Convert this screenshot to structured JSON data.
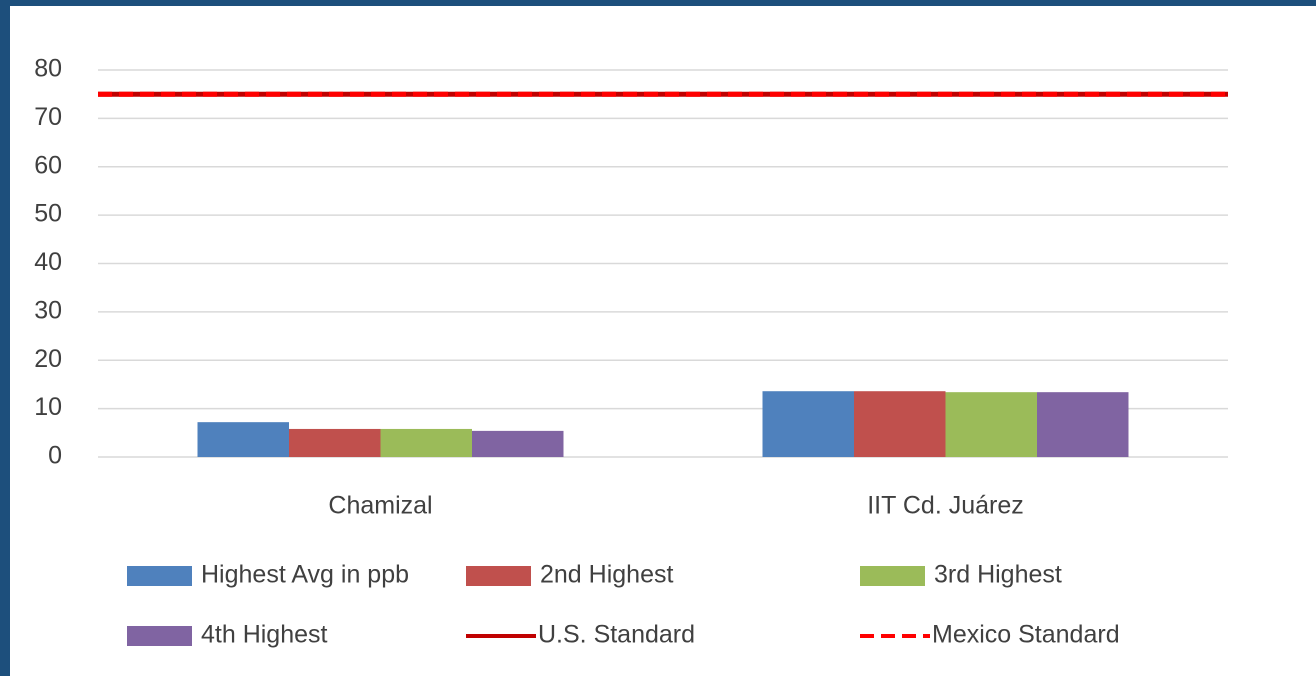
{
  "chart_data": {
    "type": "bar",
    "categories": [
      "Chamizal",
      "IIT Cd. Juárez"
    ],
    "series": [
      {
        "name": "Highest Avg in ppb",
        "color": "#4f81bd",
        "values": [
          7.2,
          13.6
        ]
      },
      {
        "name": "2nd Highest",
        "color": "#c0504d",
        "values": [
          5.8,
          13.6
        ]
      },
      {
        "name": "3rd Highest",
        "color": "#9bbb59",
        "values": [
          5.8,
          13.4
        ]
      },
      {
        "name": "4th Highest",
        "color": "#8064a2",
        "values": [
          5.4,
          13.4
        ]
      },
      {
        "name": "U.S. Standard",
        "color": "#c00000",
        "type": "line",
        "values": [
          75,
          75
        ]
      },
      {
        "name": "Mexico Standard",
        "color": "#ff0000",
        "type": "line",
        "dashed": true,
        "values": [
          75,
          75
        ]
      }
    ],
    "ylim": [
      0,
      80
    ],
    "yticks": [
      0,
      10,
      20,
      30,
      40,
      50,
      60,
      70,
      80
    ],
    "grid": true
  }
}
